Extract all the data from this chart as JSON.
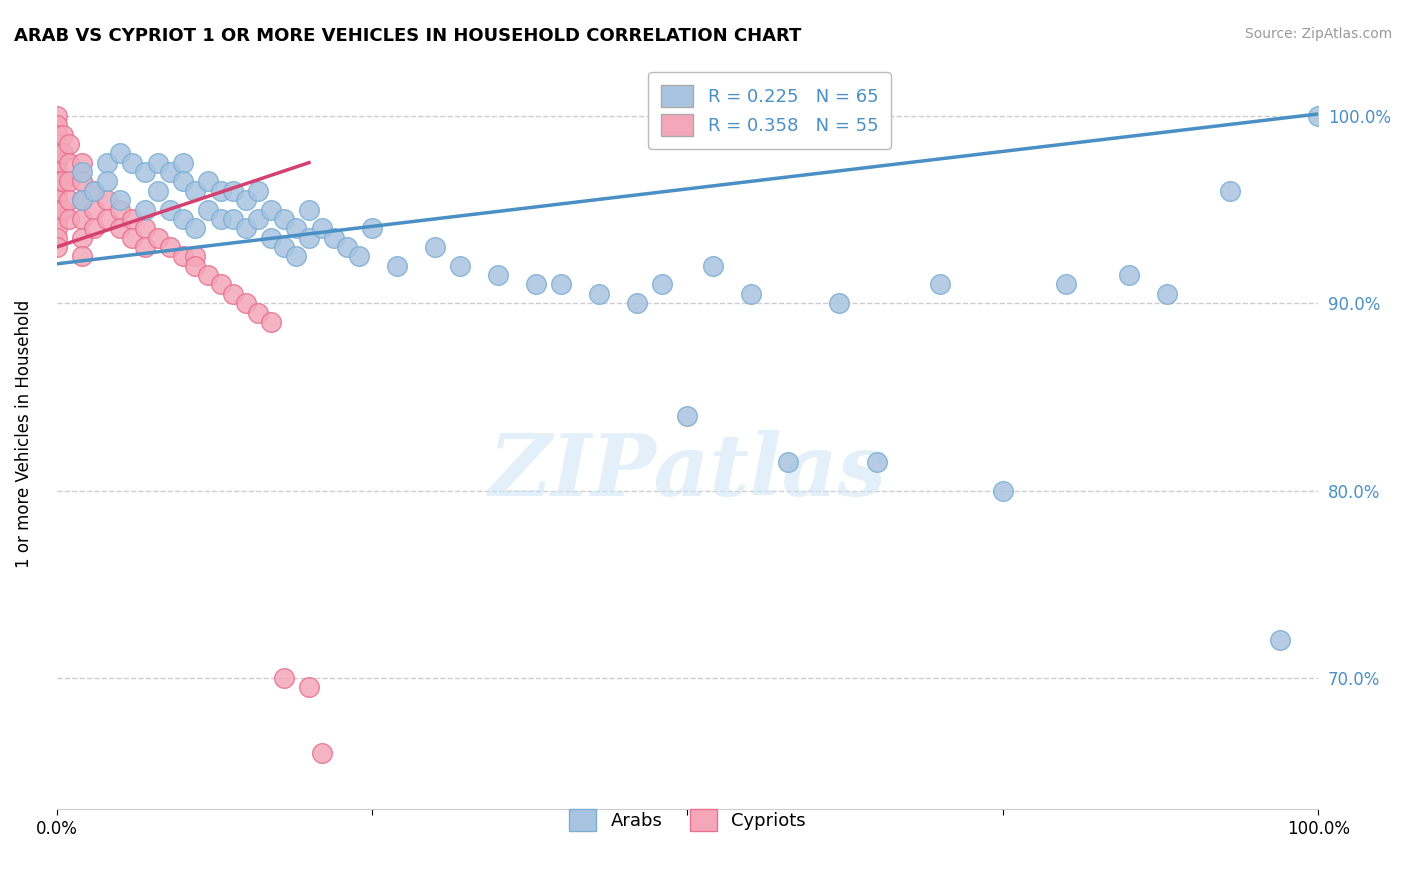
{
  "title": "ARAB VS CYPRIOT 1 OR MORE VEHICLES IN HOUSEHOLD CORRELATION CHART",
  "source": "Source: ZipAtlas.com",
  "ylabel": "1 or more Vehicles in Household",
  "xlim": [
    0,
    1.0
  ],
  "ylim": [
    0.63,
    1.03
  ],
  "ytick_positions": [
    0.7,
    0.8,
    0.9,
    1.0
  ],
  "ytick_labels": [
    "70.0%",
    "80.0%",
    "90.0%",
    "100.0%"
  ],
  "arab_r": 0.225,
  "arab_n": 65,
  "cypriot_r": 0.358,
  "cypriot_n": 55,
  "arab_color": "#a8c4e0",
  "arab_edge_color": "#7bafd4",
  "cypriot_color": "#f4a7b9",
  "cypriot_edge_color": "#e87090",
  "arab_line_color": "#4a90c4",
  "cypriot_line_color": "#d44070",
  "watermark": "ZIPatlas",
  "background_color": "#ffffff",
  "grid_color": "#cccccc",
  "arab_line_x0": 0.0,
  "arab_line_y0": 0.921,
  "arab_line_x1": 1.0,
  "arab_line_y1": 1.001,
  "cypriot_line_x0": 0.0,
  "cypriot_line_y0": 0.93,
  "cypriot_line_x1": 0.2,
  "cypriot_line_y1": 0.975,
  "arab_x": [
    0.02,
    0.02,
    0.03,
    0.04,
    0.04,
    0.05,
    0.05,
    0.06,
    0.07,
    0.07,
    0.08,
    0.08,
    0.09,
    0.09,
    0.1,
    0.1,
    0.1,
    0.11,
    0.11,
    0.12,
    0.12,
    0.13,
    0.13,
    0.14,
    0.14,
    0.15,
    0.15,
    0.16,
    0.16,
    0.17,
    0.17,
    0.18,
    0.18,
    0.19,
    0.19,
    0.2,
    0.2,
    0.21,
    0.22,
    0.23,
    0.24,
    0.25,
    0.27,
    0.3,
    0.32,
    0.35,
    0.38,
    0.4,
    0.43,
    0.46,
    0.48,
    0.5,
    0.52,
    0.55,
    0.58,
    0.62,
    0.65,
    0.7,
    0.75,
    0.8,
    0.85,
    0.88,
    0.93,
    0.97,
    1.0
  ],
  "arab_y": [
    0.97,
    0.955,
    0.96,
    0.975,
    0.965,
    0.98,
    0.955,
    0.975,
    0.97,
    0.95,
    0.975,
    0.96,
    0.97,
    0.95,
    0.975,
    0.965,
    0.945,
    0.96,
    0.94,
    0.965,
    0.95,
    0.96,
    0.945,
    0.96,
    0.945,
    0.955,
    0.94,
    0.96,
    0.945,
    0.95,
    0.935,
    0.945,
    0.93,
    0.94,
    0.925,
    0.95,
    0.935,
    0.94,
    0.935,
    0.93,
    0.925,
    0.94,
    0.92,
    0.93,
    0.92,
    0.915,
    0.91,
    0.91,
    0.905,
    0.9,
    0.91,
    0.84,
    0.92,
    0.905,
    0.815,
    0.9,
    0.815,
    0.91,
    0.8,
    0.91,
    0.915,
    0.905,
    0.96,
    0.72,
    1.0
  ],
  "cypriot_x": [
    0.0,
    0.0,
    0.0,
    0.0,
    0.0,
    0.0,
    0.0,
    0.0,
    0.0,
    0.0,
    0.0,
    0.0,
    0.0,
    0.0,
    0.0,
    0.005,
    0.005,
    0.005,
    0.005,
    0.01,
    0.01,
    0.01,
    0.01,
    0.01,
    0.02,
    0.02,
    0.02,
    0.02,
    0.02,
    0.02,
    0.03,
    0.03,
    0.03,
    0.04,
    0.04,
    0.05,
    0.05,
    0.06,
    0.06,
    0.07,
    0.07,
    0.08,
    0.09,
    0.1,
    0.11,
    0.11,
    0.12,
    0.13,
    0.14,
    0.15,
    0.16,
    0.17,
    0.18,
    0.2,
    0.21
  ],
  "cypriot_y": [
    1.0,
    0.995,
    0.99,
    0.985,
    0.98,
    0.975,
    0.97,
    0.965,
    0.96,
    0.955,
    0.95,
    0.945,
    0.94,
    0.935,
    0.93,
    0.99,
    0.98,
    0.965,
    0.95,
    0.985,
    0.975,
    0.965,
    0.955,
    0.945,
    0.975,
    0.965,
    0.955,
    0.945,
    0.935,
    0.925,
    0.96,
    0.95,
    0.94,
    0.955,
    0.945,
    0.95,
    0.94,
    0.945,
    0.935,
    0.94,
    0.93,
    0.935,
    0.93,
    0.925,
    0.925,
    0.92,
    0.915,
    0.91,
    0.905,
    0.9,
    0.895,
    0.89,
    0.7,
    0.695,
    0.66
  ]
}
